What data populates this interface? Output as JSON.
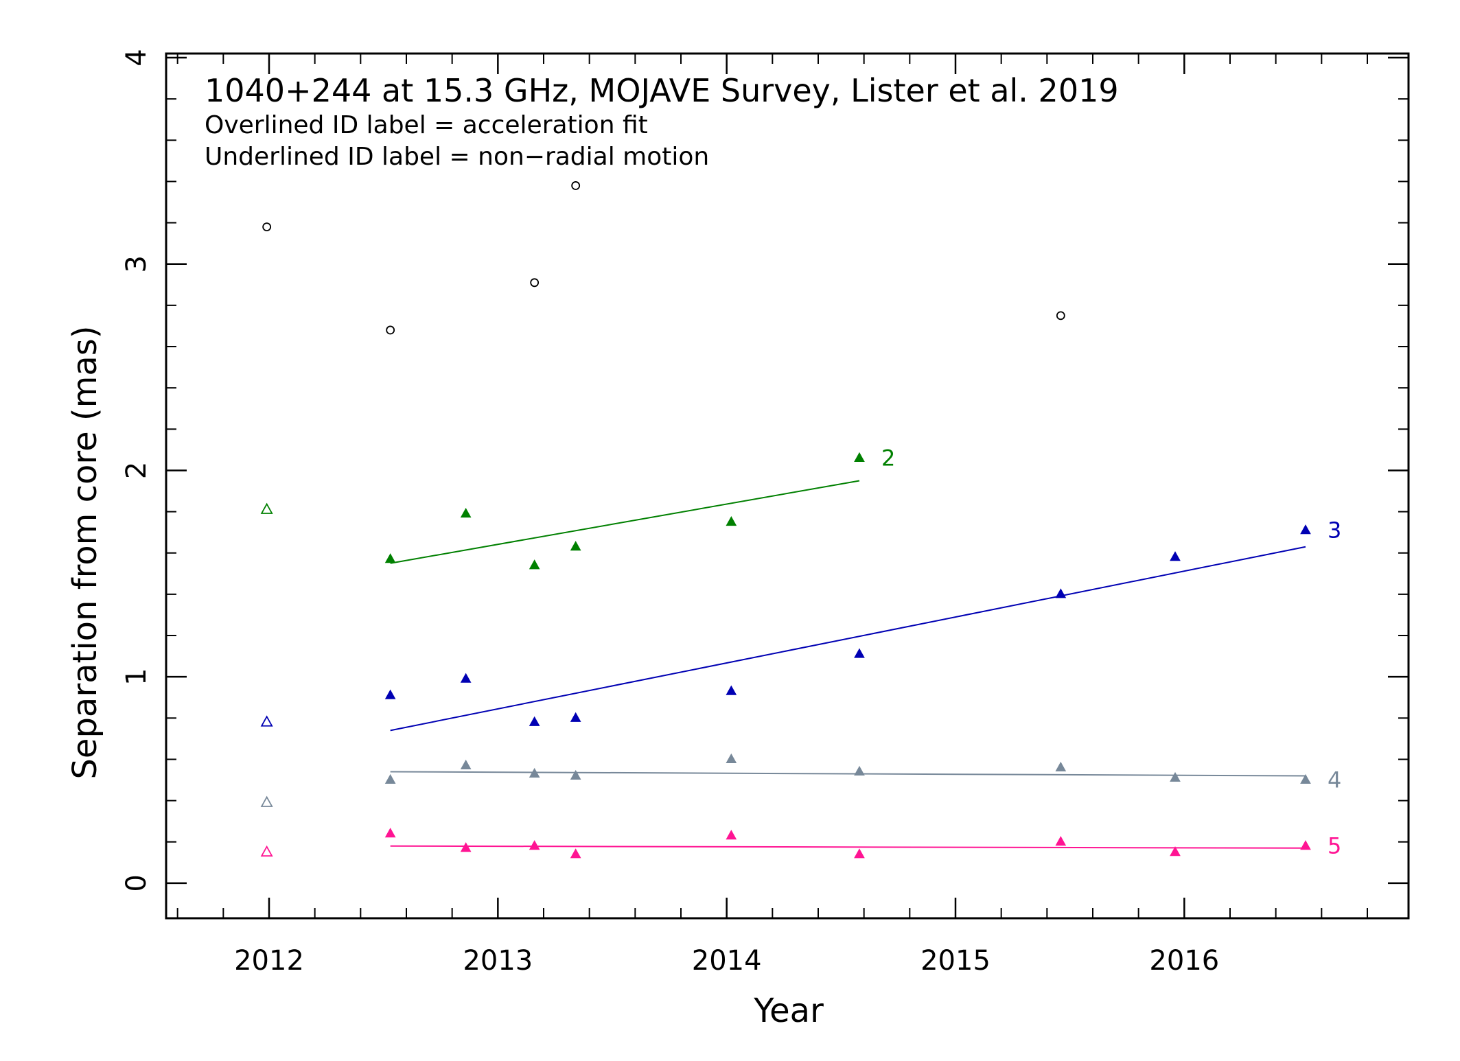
{
  "chart_data": {
    "type": "scatter",
    "title": "1040+244 at 15.3 GHz, MOJAVE Survey, Lister et al. 2019",
    "subtitles": [
      "Overlined ID label = acceleration fit",
      "Underlined ID label = non−radial motion"
    ],
    "xlabel": "Year",
    "ylabel": "Separation from core (mas)",
    "xlim": [
      2011.55,
      2016.98
    ],
    "ylim": [
      -0.17,
      4.02
    ],
    "x_ticks": [
      2012,
      2013,
      2014,
      2015,
      2016
    ],
    "x_tick_labels": [
      "2012",
      "2013",
      "2014",
      "2015",
      "2016"
    ],
    "y_ticks": [
      0,
      1,
      2,
      3,
      4
    ],
    "y_tick_labels": [
      "0",
      "1",
      "2",
      "3",
      "4"
    ],
    "grid": false,
    "series": [
      {
        "id": "unlabeled-circles",
        "name": "",
        "marker": "circle-open",
        "color": "#000000",
        "points": [
          {
            "x": 2011.99,
            "y": 3.18
          },
          {
            "x": 2012.53,
            "y": 2.68
          },
          {
            "x": 2013.16,
            "y": 2.91
          },
          {
            "x": 2013.34,
            "y": 3.38
          },
          {
            "x": 2015.46,
            "y": 2.75
          }
        ]
      },
      {
        "id": "c2",
        "name": "2",
        "marker": "triangle-filled",
        "color": "#008000",
        "open_points": [
          {
            "x": 2011.99,
            "y": 1.81
          }
        ],
        "points": [
          {
            "x": 2012.53,
            "y": 1.57
          },
          {
            "x": 2012.86,
            "y": 1.79
          },
          {
            "x": 2013.16,
            "y": 1.54
          },
          {
            "x": 2013.34,
            "y": 1.63
          },
          {
            "x": 2014.02,
            "y": 1.75
          },
          {
            "x": 2014.58,
            "y": 2.06
          }
        ],
        "fit": {
          "x": [
            2012.53,
            2014.58
          ],
          "y": [
            1.55,
            1.95
          ]
        }
      },
      {
        "id": "c3",
        "name": "3",
        "marker": "triangle-filled",
        "color": "#0000b3",
        "open_points": [
          {
            "x": 2011.99,
            "y": 0.78
          }
        ],
        "points": [
          {
            "x": 2012.53,
            "y": 0.91
          },
          {
            "x": 2012.86,
            "y": 0.99
          },
          {
            "x": 2013.16,
            "y": 0.78
          },
          {
            "x": 2013.34,
            "y": 0.8
          },
          {
            "x": 2014.02,
            "y": 0.93
          },
          {
            "x": 2014.58,
            "y": 1.11
          },
          {
            "x": 2015.46,
            "y": 1.4
          },
          {
            "x": 2015.96,
            "y": 1.58
          },
          {
            "x": 2016.53,
            "y": 1.71
          }
        ],
        "fit": {
          "x": [
            2012.53,
            2016.53
          ],
          "y": [
            0.74,
            1.63
          ]
        }
      },
      {
        "id": "c4",
        "name": "4",
        "marker": "triangle-filled",
        "color": "#778899",
        "open_points": [
          {
            "x": 2011.99,
            "y": 0.39
          }
        ],
        "points": [
          {
            "x": 2012.53,
            "y": 0.5
          },
          {
            "x": 2012.86,
            "y": 0.57
          },
          {
            "x": 2013.16,
            "y": 0.53
          },
          {
            "x": 2013.34,
            "y": 0.52
          },
          {
            "x": 2014.02,
            "y": 0.6
          },
          {
            "x": 2014.58,
            "y": 0.54
          },
          {
            "x": 2015.46,
            "y": 0.56
          },
          {
            "x": 2015.96,
            "y": 0.51
          },
          {
            "x": 2016.53,
            "y": 0.5
          }
        ],
        "fit": {
          "x": [
            2012.53,
            2016.53
          ],
          "y": [
            0.54,
            0.52
          ]
        }
      },
      {
        "id": "c5",
        "name": "5",
        "marker": "triangle-filled",
        "color": "#ff1493",
        "open_points": [
          {
            "x": 2011.99,
            "y": 0.15
          }
        ],
        "points": [
          {
            "x": 2012.53,
            "y": 0.24
          },
          {
            "x": 2012.86,
            "y": 0.17
          },
          {
            "x": 2013.16,
            "y": 0.18
          },
          {
            "x": 2013.34,
            "y": 0.14
          },
          {
            "x": 2014.02,
            "y": 0.23
          },
          {
            "x": 2014.58,
            "y": 0.14
          },
          {
            "x": 2015.46,
            "y": 0.2
          },
          {
            "x": 2015.96,
            "y": 0.15
          },
          {
            "x": 2016.53,
            "y": 0.18
          }
        ],
        "fit": {
          "x": [
            2012.53,
            2016.53
          ],
          "y": [
            0.18,
            0.17
          ]
        }
      }
    ]
  }
}
